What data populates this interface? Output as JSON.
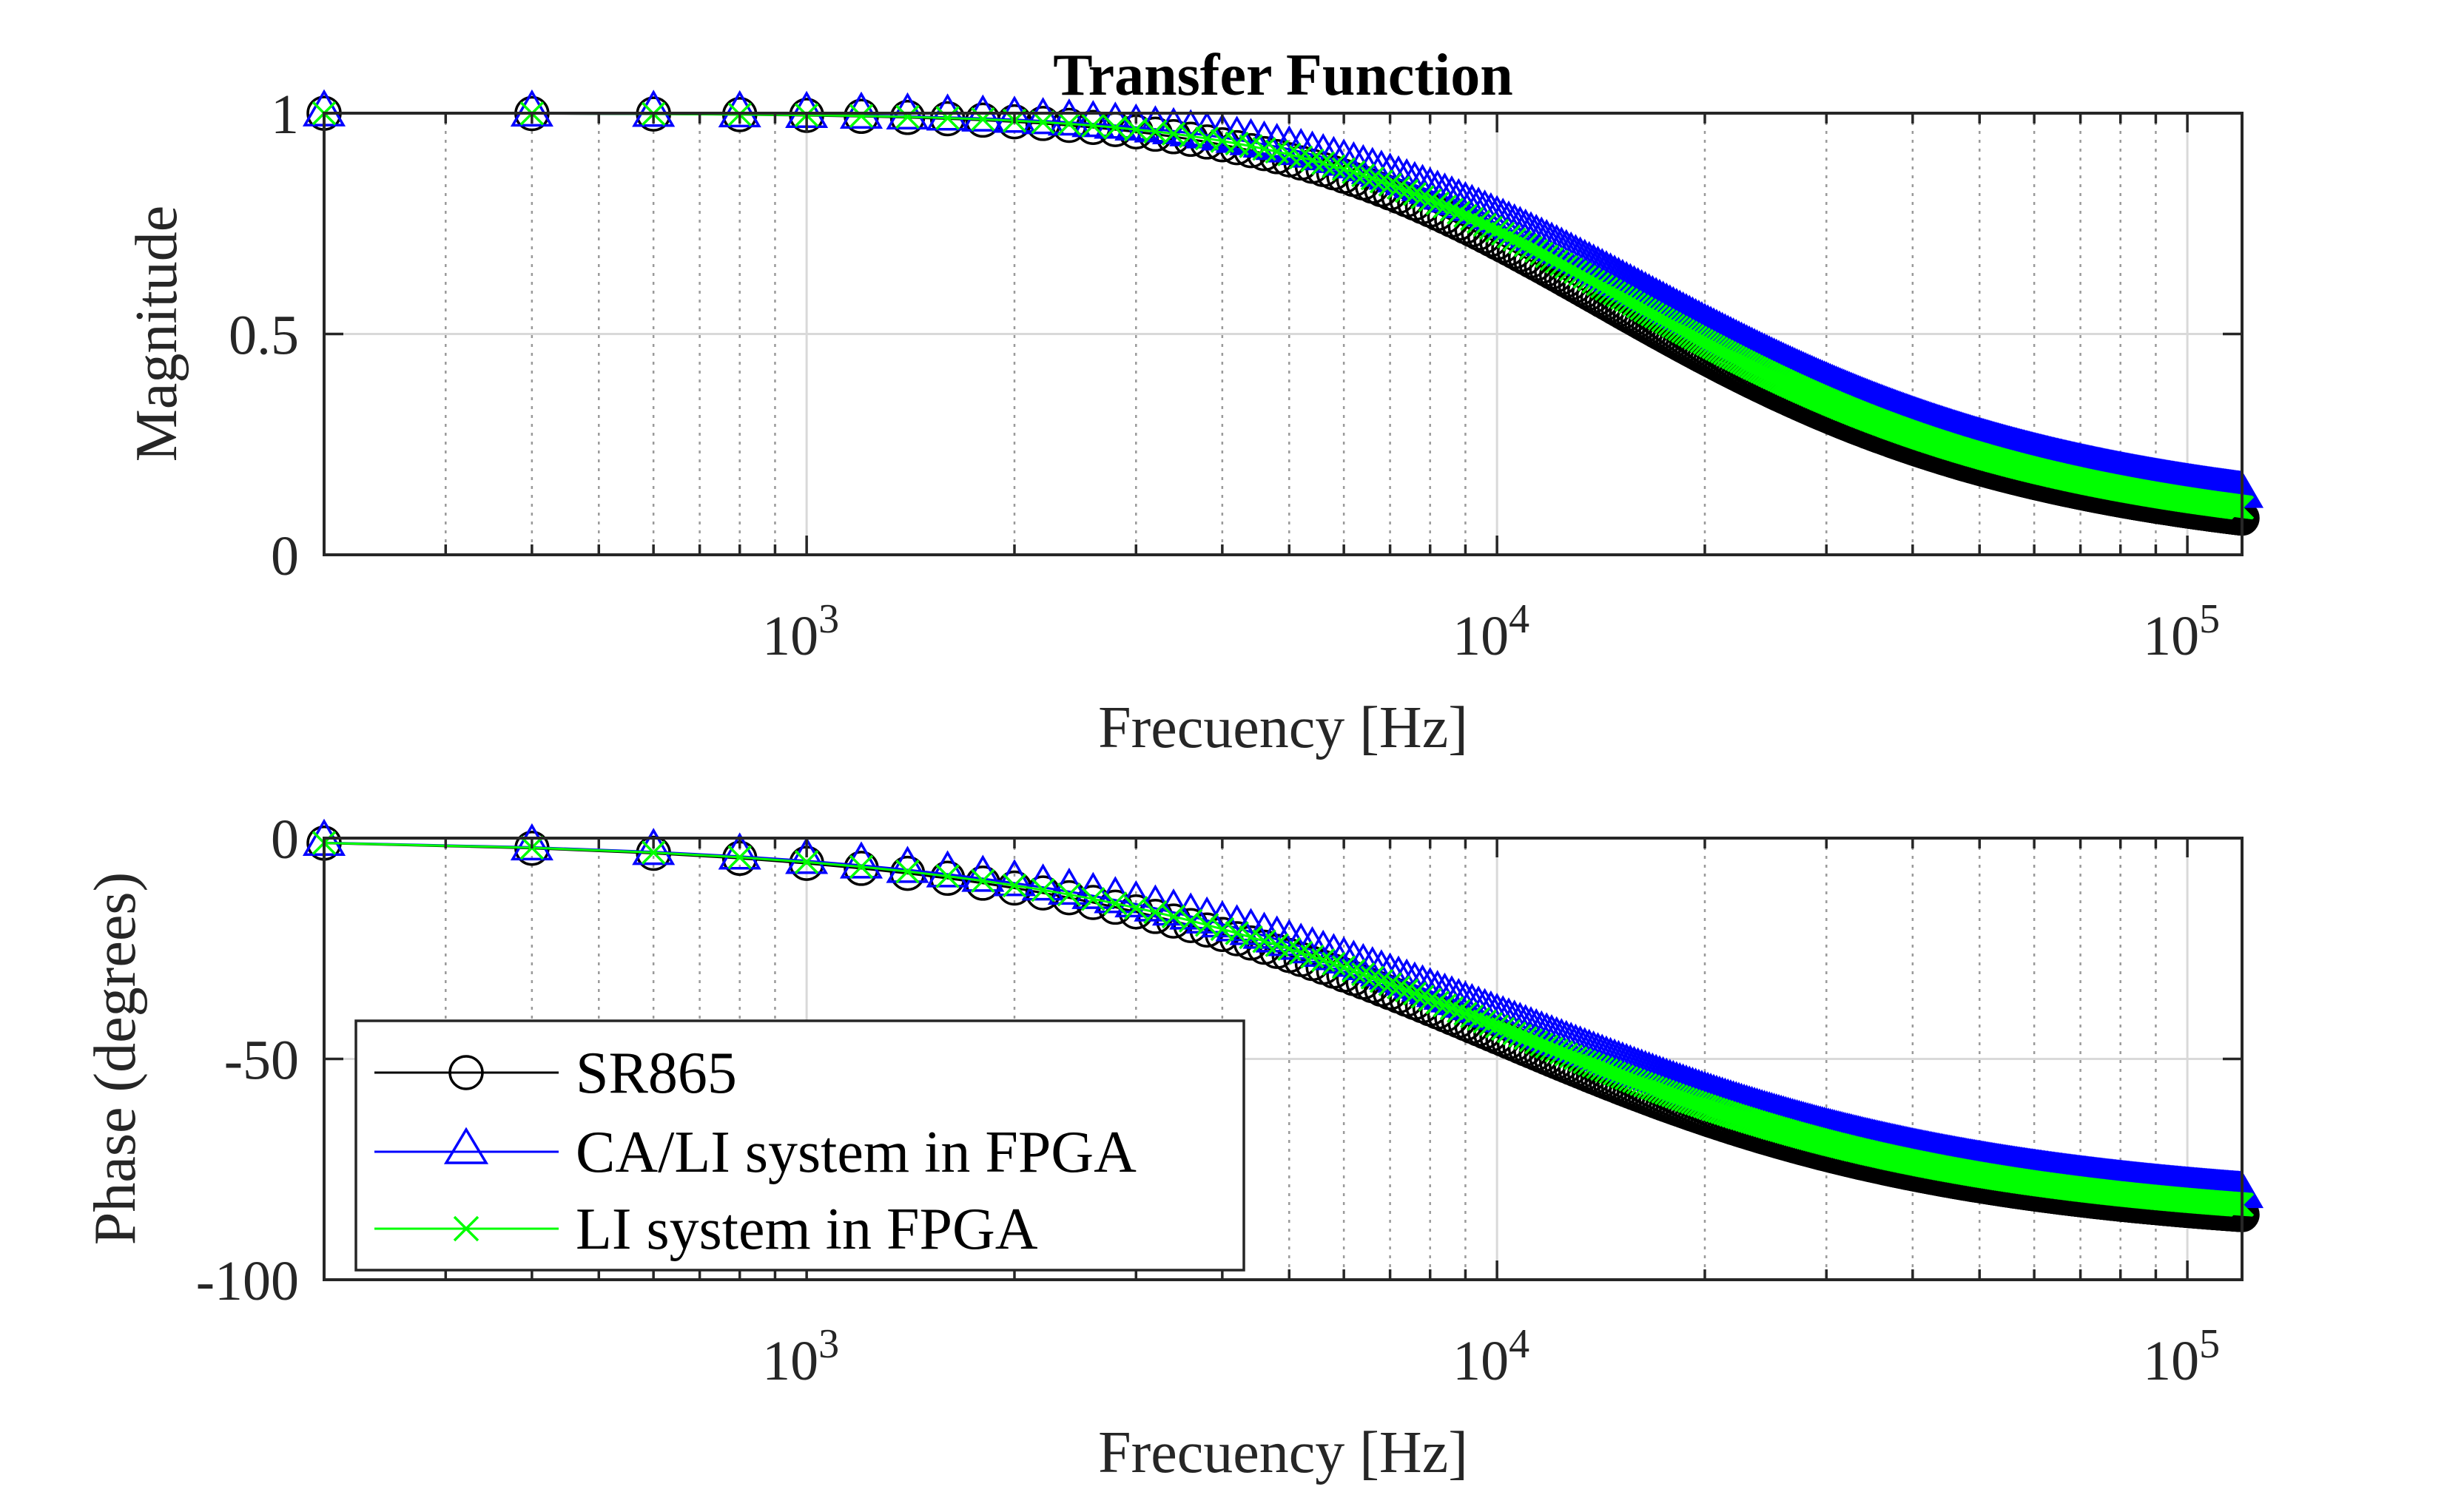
{
  "chart_data": [
    {
      "type": "line",
      "title": "Transfer Function",
      "xlabel": "Frecuency [Hz]",
      "ylabel": "Magnitude",
      "xscale": "log",
      "xlim": [
        200,
        120000
      ],
      "ylim": [
        0,
        1
      ],
      "yticks": [
        "0",
        "0.5",
        "1"
      ],
      "grid": true,
      "x_tick_labels": [
        {
          "base": "10",
          "exp": "3",
          "value": 1000
        },
        {
          "base": "10",
          "exp": "4",
          "value": 10000
        },
        {
          "base": "10",
          "exp": "5",
          "value": 100000
        }
      ],
      "series": [
        {
          "name": "SR865",
          "color": "#000000",
          "marker": "circle",
          "corner_hz": 10000,
          "y_offset": 0.0
        },
        {
          "name": "CA/LI system in FPGA",
          "color": "#0000ff",
          "marker": "triangle",
          "corner_hz": 11000,
          "y_offset": 0.045
        },
        {
          "name": "LI system in FPGA",
          "color": "#00ff00",
          "marker": "cross",
          "corner_hz": 10500,
          "y_offset": 0.02
        }
      ],
      "x_values_hz": "200 to 120000 in 200 Hz steps"
    },
    {
      "type": "line",
      "title": "",
      "xlabel": "Frecuency [Hz]",
      "ylabel": "Phase (degrees)",
      "xscale": "log",
      "xlim": [
        200,
        120000
      ],
      "ylim": [
        -100,
        0
      ],
      "yticks": [
        "-100",
        "-50",
        "0"
      ],
      "grid": true,
      "legend_location": "bottom-left",
      "series": [
        {
          "name": "SR865",
          "color": "#000000",
          "marker": "circle",
          "corner_hz": 10000,
          "phase_offset": 0.0
        },
        {
          "name": "CA/LI system in FPGA",
          "color": "#0000ff",
          "marker": "triangle",
          "corner_hz": 11000,
          "phase_offset": 4.0
        },
        {
          "name": "LI system in FPGA",
          "color": "#00ff00",
          "marker": "cross",
          "corner_hz": 10500,
          "phase_offset": 2.0
        }
      ]
    }
  ],
  "legend": {
    "items": [
      "SR865",
      "CA/LI system in FPGA",
      "LI system in FPGA"
    ]
  }
}
